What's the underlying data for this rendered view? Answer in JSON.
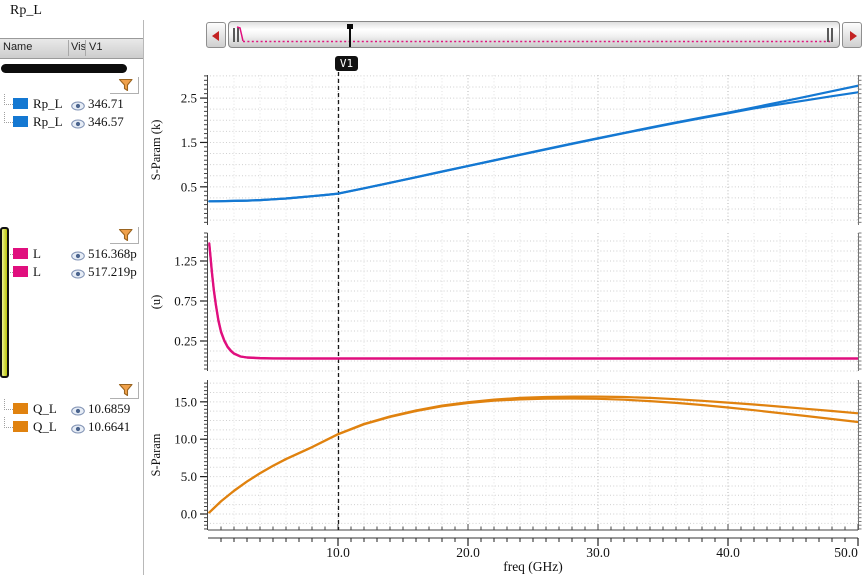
{
  "window": {
    "title": "Rp_L"
  },
  "left_panel": {
    "columns": [
      "Name",
      "Vis",
      "V1"
    ],
    "groups": [
      {
        "filter": "funnel-icon",
        "rows": [
          {
            "name": "Rp_L",
            "color": "#1478d2",
            "eye": "visible",
            "value": "346.71"
          },
          {
            "name": "Rp_L",
            "color": "#1478d2",
            "eye": "visible",
            "value": "346.57"
          }
        ]
      },
      {
        "filter": "funnel-icon",
        "rows": [
          {
            "name": "L",
            "color": "#e00f7e",
            "eye": "visible",
            "value": "516.368p"
          },
          {
            "name": "L",
            "color": "#e00f7e",
            "eye": "visible",
            "value": "517.219p"
          }
        ]
      },
      {
        "filter": "funnel-icon",
        "rows": [
          {
            "name": "Q_L",
            "color": "#e0820f",
            "eye": "visible",
            "value": "10.6859"
          },
          {
            "name": "Q_L",
            "color": "#e0820f",
            "eye": "visible",
            "value": "10.6641"
          }
        ]
      }
    ]
  },
  "overview": {
    "marker_label": "V1"
  },
  "chart_data": [
    {
      "type": "line",
      "ylabel": "S-Param (k)",
      "ylim": [
        -0.36,
        3.02
      ],
      "yticks": [
        0.5,
        1.5,
        2.5
      ],
      "ytick_labels": [
        "0.5",
        "1.5",
        "2.5"
      ],
      "minor_step": 0.1,
      "grid_step": 0.25,
      "grid": true,
      "marker": {
        "label": "V1",
        "x_ghz": 10.0,
        "values": [
          "346.71",
          "346.57"
        ]
      },
      "series": [
        {
          "name": "Rp_L",
          "color": "#1478d2",
          "x": [
            0.1,
            1,
            2,
            3,
            4,
            5,
            6,
            7,
            8,
            9,
            10,
            12,
            14,
            16,
            18,
            20,
            22,
            24,
            26,
            28,
            30,
            32,
            34,
            36,
            38,
            40,
            42,
            44,
            46,
            48,
            50
          ],
          "y": [
            0.175,
            0.177,
            0.182,
            0.19,
            0.202,
            0.218,
            0.238,
            0.262,
            0.289,
            0.317,
            0.347,
            0.468,
            0.592,
            0.718,
            0.845,
            0.972,
            1.098,
            1.224,
            1.35,
            1.474,
            1.596,
            1.716,
            1.834,
            1.95,
            2.062,
            2.17,
            2.29,
            2.41,
            2.53,
            2.655,
            2.78
          ]
        },
        {
          "name": "Rp_L",
          "color": "#1478d2",
          "x": [
            0.1,
            1,
            2,
            3,
            4,
            5,
            6,
            7,
            8,
            9,
            10,
            12,
            14,
            16,
            18,
            20,
            22,
            24,
            26,
            28,
            30,
            32,
            34,
            36,
            38,
            40,
            42,
            44,
            46,
            48,
            50
          ],
          "y": [
            0.175,
            0.177,
            0.182,
            0.19,
            0.202,
            0.218,
            0.238,
            0.262,
            0.289,
            0.317,
            0.346,
            0.466,
            0.59,
            0.715,
            0.842,
            0.968,
            1.094,
            1.219,
            1.344,
            1.468,
            1.589,
            1.708,
            1.825,
            1.94,
            2.05,
            2.158,
            2.268,
            2.36,
            2.45,
            2.542,
            2.63
          ]
        }
      ]
    },
    {
      "type": "line",
      "ylabel": "(u)",
      "ylim": [
        -0.125,
        1.6
      ],
      "yticks": [
        0.25,
        0.75,
        1.25
      ],
      "ytick_labels": [
        "0.25",
        "0.75",
        "1.25"
      ],
      "minor_step": 0.05,
      "grid_step": 0.125,
      "grid": true,
      "marker": {
        "label": "V1",
        "x_ghz": 10.0,
        "values": [
          "516.368p",
          "517.219p"
        ]
      },
      "series": [
        {
          "name": "L",
          "color": "#e00f7e",
          "x": [
            0.1,
            0.2,
            0.3,
            0.45,
            0.6,
            0.8,
            1.0,
            1.25,
            1.5,
            1.75,
            2.0,
            2.5,
            3,
            4,
            5,
            7,
            10,
            15,
            20,
            25,
            30,
            35,
            40,
            45,
            50
          ],
          "y": [
            1.45,
            1.28,
            1.1,
            0.88,
            0.7,
            0.5,
            0.36,
            0.25,
            0.175,
            0.125,
            0.09,
            0.055,
            0.042,
            0.034,
            0.031,
            0.03,
            0.03,
            0.03,
            0.03,
            0.03,
            0.03,
            0.03,
            0.03,
            0.03,
            0.03
          ]
        },
        {
          "name": "L",
          "color": "#e00f7e",
          "x": [
            0.1,
            0.2,
            0.3,
            0.45,
            0.6,
            0.8,
            1.0,
            1.25,
            1.5,
            1.75,
            2.0,
            2.5,
            3,
            4,
            5,
            7,
            10,
            15,
            20,
            25,
            30,
            35,
            40,
            45,
            50
          ],
          "y": [
            1.47,
            1.3,
            1.12,
            0.9,
            0.715,
            0.515,
            0.372,
            0.26,
            0.183,
            0.131,
            0.095,
            0.058,
            0.045,
            0.037,
            0.034,
            0.033,
            0.033,
            0.033,
            0.033,
            0.033,
            0.033,
            0.033,
            0.033,
            0.033,
            0.033
          ]
        }
      ]
    },
    {
      "type": "line",
      "ylabel": "S-Param",
      "ylim": [
        -2.14,
        17.92
      ],
      "yticks": [
        0.0,
        5.0,
        10.0,
        15.0
      ],
      "ytick_labels": [
        "0.0",
        "5.0",
        "10.0",
        "15.0"
      ],
      "minor_step": 0.5,
      "grid_step": 1.25,
      "grid": true,
      "marker": {
        "label": "V1",
        "x_ghz": 10.0,
        "values": [
          "10.6859",
          "10.6641"
        ]
      },
      "series": [
        {
          "name": "Q_L",
          "color": "#e0820f",
          "x": [
            0.1,
            1,
            2,
            3,
            4,
            5,
            6,
            8,
            10,
            12,
            14,
            16,
            18,
            20,
            22,
            24,
            26,
            28,
            30,
            32,
            34,
            36,
            38,
            40,
            42,
            44,
            46,
            48,
            50
          ],
          "y": [
            0.2,
            1.7,
            3.1,
            4.35,
            5.45,
            6.45,
            7.35,
            8.95,
            10.686,
            12.05,
            13.05,
            13.85,
            14.5,
            14.95,
            15.3,
            15.52,
            15.64,
            15.7,
            15.7,
            15.64,
            15.52,
            15.35,
            15.14,
            14.9,
            14.64,
            14.36,
            14.07,
            13.77,
            13.46
          ]
        },
        {
          "name": "Q_L",
          "color": "#e0820f",
          "x": [
            0.1,
            1,
            2,
            3,
            4,
            5,
            6,
            8,
            10,
            12,
            14,
            16,
            18,
            20,
            22,
            24,
            26,
            28,
            30,
            32,
            34,
            36,
            38,
            40,
            42,
            44,
            46,
            48,
            50
          ],
          "y": [
            0.2,
            1.7,
            3.1,
            4.35,
            5.44,
            6.44,
            7.34,
            8.93,
            10.664,
            12.0,
            12.98,
            13.77,
            14.4,
            14.85,
            15.15,
            15.33,
            15.42,
            15.44,
            15.4,
            15.28,
            15.1,
            14.86,
            14.57,
            14.24,
            13.88,
            13.5,
            13.1,
            12.7,
            12.3
          ]
        }
      ]
    }
  ],
  "x_axis": {
    "label": "freq (GHz)",
    "range": [
      0,
      50
    ],
    "minor_step": 1,
    "ticks": [
      10,
      20,
      30,
      40,
      50
    ],
    "tick_labels": [
      "10.0",
      "20.0",
      "30.0",
      "40.0",
      "50.0"
    ]
  }
}
